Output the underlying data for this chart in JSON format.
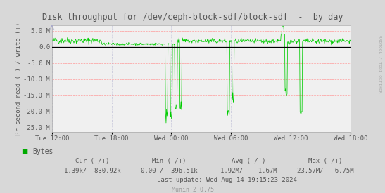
{
  "title": "Disk throughput for /dev/ceph-block-sdf/block-sdf  -  by day",
  "ylabel": "Pr second read (-) / write (+)",
  "bg_color": "#d8d8d8",
  "plot_bg_color": "#f0f0f0",
  "hgrid_color": "#ff9999",
  "vgrid_color": "#aaaacc",
  "line_color": "#00cc00",
  "zero_line_color": "#000000",
  "border_color": "#aaaaaa",
  "ylim": [
    -26500000,
    6800000
  ],
  "yticks": [
    -25000000,
    -20000000,
    -15000000,
    -10000000,
    -5000000,
    0,
    5000000
  ],
  "ytick_labels": [
    "-25.0 M",
    "-20.0 M",
    "-15.0 M",
    "-10.0 M",
    "-5.0 M",
    "0.0",
    "5.0 M"
  ],
  "xtick_labels": [
    "Tue 12:00",
    "Tue 18:00",
    "Wed 00:00",
    "Wed 06:00",
    "Wed 12:00",
    "Wed 18:00"
  ],
  "xtick_positions": [
    0.0,
    0.2,
    0.4,
    0.6,
    0.8,
    1.0
  ],
  "legend_label": "Bytes",
  "legend_color": "#00aa00",
  "footer_cur": "Cur (-/+)",
  "footer_min": "Min (-/+)",
  "footer_avg": "Avg (-/+)",
  "footer_max": "Max (-/+)",
  "footer_cur_val": "1.39k/  830.92k",
  "footer_min_val": "0.00 /  396.51k",
  "footer_avg_val": "1.92M/    1.67M",
  "footer_max_val": "23.57M/   6.75M",
  "footer_last": "Last update: Wed Aug 14 19:15:23 2024",
  "footer_munin": "Munin 2.0.75",
  "right_label": "RRDTOOL / TOBI OETIKER",
  "font_color": "#555555",
  "title_color": "#555555"
}
